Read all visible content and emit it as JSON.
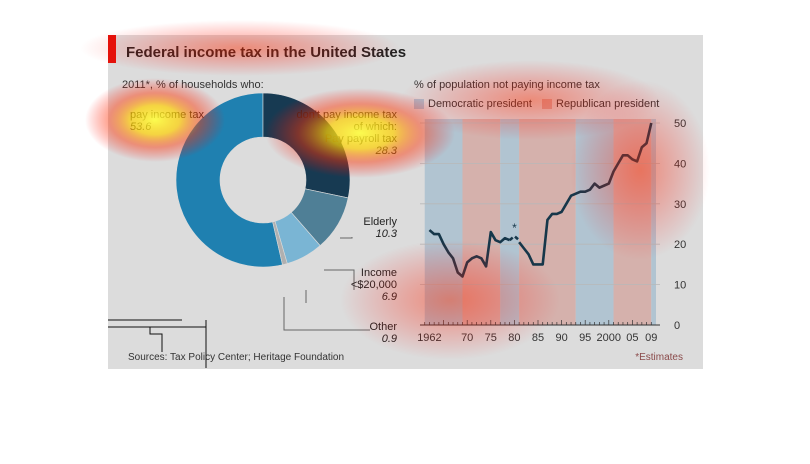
{
  "header": {
    "title": "Federal income tax in the United States",
    "subtitle": "2011*, % of households who:",
    "sources": "Sources: Tax Policy Center; Heritage Foundation",
    "estimates_note": "*Estimates"
  },
  "colors": {
    "panel_bg": "#dcdcdc",
    "accent": "#e3120b",
    "democratic": "#a9bfcf",
    "republican": "#d3a9a3",
    "line": "#16374a",
    "donut": [
      "#1f80b0",
      "#173a52",
      "#4f7f96",
      "#7ab5d4",
      "#b0b0b0"
    ]
  },
  "chart_data": [
    {
      "type": "pie",
      "variant": "donut",
      "title": "2011*, % of households who:",
      "slices": [
        {
          "label": "pay income tax",
          "value": 53.6
        },
        {
          "label": "don't pay income tax, of which: Pay payroll tax",
          "value": 28.3
        },
        {
          "label": "Elderly",
          "value": 10.3
        },
        {
          "label": "Income <$20,000",
          "value": 6.9
        },
        {
          "label": "Other",
          "value": 0.9
        }
      ],
      "labels": {
        "pay": {
          "text": "pay income tax",
          "value": "53.6"
        },
        "dont": {
          "line1": "don't pay income tax",
          "line2": "of which:",
          "line3": "Pay payroll tax",
          "value": "28.3"
        },
        "elderly": {
          "text": "Elderly",
          "value": "10.3"
        },
        "income": {
          "line1": "Income",
          "line2": "<$20,000",
          "value": "6.9"
        },
        "other": {
          "text": "Other",
          "value": "0.9"
        }
      }
    },
    {
      "type": "line",
      "title": "% of population not paying income tax",
      "legend": [
        "Democratic president",
        "Republican president"
      ],
      "legend_placement": "top",
      "xlim": [
        1960,
        2010
      ],
      "ylim": [
        0,
        50
      ],
      "y_ticks": [
        0,
        10,
        20,
        30,
        40,
        50
      ],
      "x_tick_labels": [
        {
          "year": 1962,
          "label": "1962"
        },
        {
          "year": 1970,
          "label": "70"
        },
        {
          "year": 1975,
          "label": "75"
        },
        {
          "year": 1980,
          "label": "80"
        },
        {
          "year": 1985,
          "label": "85"
        },
        {
          "year": 1990,
          "label": "90"
        },
        {
          "year": 1995,
          "label": "95"
        },
        {
          "year": 2000,
          "label": "2000"
        },
        {
          "year": 2005,
          "label": "05"
        },
        {
          "year": 2009,
          "label": "09"
        }
      ],
      "periods": [
        {
          "party": "D",
          "from": 1961,
          "to": 1969
        },
        {
          "party": "R",
          "from": 1969,
          "to": 1977
        },
        {
          "party": "D",
          "from": 1977,
          "to": 1981
        },
        {
          "party": "R",
          "from": 1981,
          "to": 1993
        },
        {
          "party": "D",
          "from": 1993,
          "to": 2001
        },
        {
          "party": "R",
          "from": 2001,
          "to": 2009
        },
        {
          "party": "D",
          "from": 2009,
          "to": 2010
        }
      ],
      "series": [
        {
          "x": [
            1962,
            1963,
            1964,
            1965,
            1966,
            1967,
            1968,
            1969,
            1970,
            1971,
            1972,
            1973,
            1974,
            1975,
            1976,
            1977,
            1978,
            1979
          ],
          "y": [
            23.5,
            22.5,
            22.5,
            20,
            18,
            16.5,
            13,
            12,
            15.5,
            16.5,
            17,
            16.5,
            14.5,
            23,
            21,
            20.5,
            21.5,
            21
          ]
        },
        {
          "style": "dashed",
          "x": [
            1979,
            1980,
            1981
          ],
          "y": [
            21,
            22,
            21
          ]
        },
        {
          "x": [
            1981,
            1982,
            1983,
            1984,
            1985,
            1986,
            1987,
            1988,
            1989,
            1990,
            1991,
            1992,
            1993,
            1994,
            1995,
            1996,
            1997,
            1998,
            1999,
            2000,
            2001,
            2002,
            2003,
            2004,
            2005,
            2006,
            2007,
            2008,
            2009
          ],
          "y": [
            20.5,
            19,
            17.5,
            15,
            15,
            15,
            26,
            27.5,
            27.5,
            28,
            30,
            32,
            32.5,
            33,
            33,
            33.5,
            35,
            34,
            34.5,
            35,
            38,
            40,
            42,
            42,
            41,
            40.5,
            44,
            45,
            50
          ]
        }
      ],
      "annotations": [
        {
          "text": "*",
          "x": 1980,
          "y": 23
        }
      ]
    }
  ]
}
